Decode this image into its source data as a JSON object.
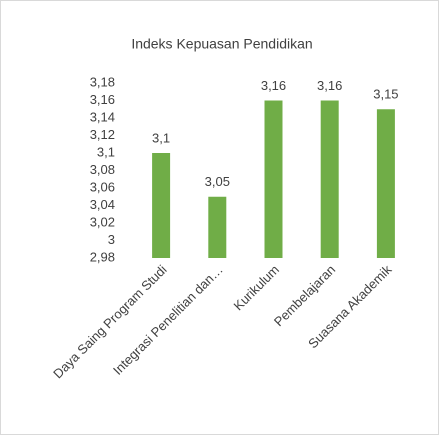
{
  "chart_data": {
    "type": "bar",
    "title": "Indeks Kepuasan Pendidikan",
    "categories": [
      "Daya Saing Program Studi",
      "Integrasi Penelitian dan…",
      "Kurikulum",
      "Pembelajaran",
      "Suasana Akademik"
    ],
    "values": [
      3.1,
      3.05,
      3.16,
      3.16,
      3.15
    ],
    "value_labels": [
      "3,1",
      "3,05",
      "3,16",
      "3,16",
      "3,15"
    ],
    "color": "#70ad47",
    "ylim": [
      2.98,
      3.18
    ],
    "yticks": [
      {
        "value": 2.98,
        "label": "2,98"
      },
      3,
      {
        "value": 3.02,
        "label": "3,02"
      },
      {
        "value": 3.04,
        "label": "3,04"
      },
      {
        "value": 3.06,
        "label": "3,06"
      },
      {
        "value": 3.08,
        "label": "3,08"
      },
      {
        "value": 3.1,
        "label": "3,1"
      },
      {
        "value": 3.12,
        "label": "3,12"
      },
      {
        "value": 3.14,
        "label": "3,14"
      },
      {
        "value": 3.16,
        "label": "3,16"
      },
      {
        "value": 3.18,
        "label": "3,18"
      }
    ],
    "grid": false
  }
}
